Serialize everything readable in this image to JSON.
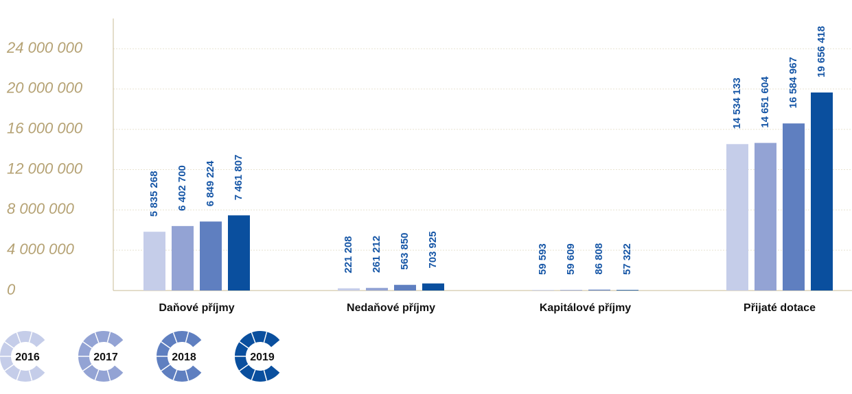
{
  "chart_data": {
    "type": "bar",
    "categories": [
      "Daňové příjmy",
      "Nedaňové příjmy",
      "Kapitálové příjmy",
      "Přijaté dotace"
    ],
    "series": [
      {
        "name": "2016",
        "color": "#c5cde9",
        "values": [
          5835268,
          221208,
          59593,
          14534133
        ],
        "value_labels": [
          "5 835 268",
          "221 208",
          "59 593",
          "14 534 133"
        ]
      },
      {
        "name": "2017",
        "color": "#93a3d4",
        "values": [
          6402700,
          261212,
          59609,
          14651604
        ],
        "value_labels": [
          "6 402 700",
          "261 212",
          "59 609",
          "14 651 604"
        ]
      },
      {
        "name": "2018",
        "color": "#5f7fc0",
        "values": [
          6849224,
          563850,
          86808,
          16584967
        ],
        "value_labels": [
          "6 849 224",
          "563 850",
          "86 808",
          "16 584 967"
        ]
      },
      {
        "name": "2019",
        "color": "#0a4f9e",
        "values": [
          7461807,
          703925,
          57322,
          19656418
        ],
        "value_labels": [
          "7 461 807",
          "703 925",
          "57 322",
          "19 656 418"
        ]
      }
    ],
    "ylim": [
      0,
      27000000
    ],
    "yticks": [
      0,
      {
        "value": 4000000,
        "label": "4 000 000"
      },
      {
        "value": 8000000,
        "label": "8 000 000"
      },
      {
        "value": 12000000,
        "label": "12 000 000"
      },
      {
        "value": 16000000,
        "label": "16 000 000"
      },
      {
        "value": 20000000,
        "label": "20 000 000"
      },
      {
        "value": 24000000,
        "label": "24 000 000"
      }
    ],
    "grid": true
  }
}
